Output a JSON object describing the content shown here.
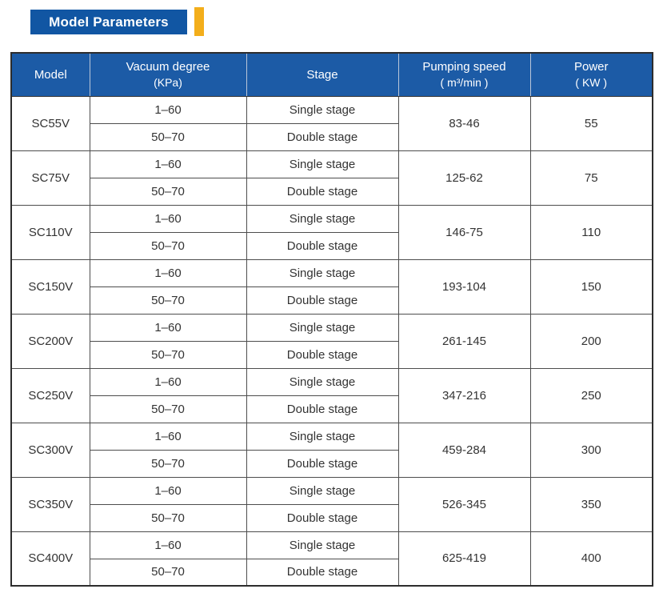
{
  "banner": {
    "label": "Model Parameters",
    "bg_color": "#1156a3",
    "accent_color": "#f3ae1b"
  },
  "table": {
    "header_bg": "#1c5ba6",
    "header_text_color": "#ffffff",
    "columns": [
      {
        "label": "Model",
        "sub": ""
      },
      {
        "label": "Vacuum degree",
        "sub": "(KPa)"
      },
      {
        "label": "Stage",
        "sub": ""
      },
      {
        "label": "Pumping speed",
        "sub": "( m³/min )"
      },
      {
        "label": "Power",
        "sub": "( KW )"
      }
    ],
    "rows": [
      {
        "model": "SC55V",
        "sub_rows": [
          {
            "vacuum": "1–60",
            "stage": "Single stage"
          },
          {
            "vacuum": "50–70",
            "stage": "Double stage"
          }
        ],
        "pumping_speed": "83-46",
        "power": "55"
      },
      {
        "model": "SC75V",
        "sub_rows": [
          {
            "vacuum": "1–60",
            "stage": "Single stage"
          },
          {
            "vacuum": "50–70",
            "stage": "Double stage"
          }
        ],
        "pumping_speed": "125-62",
        "power": "75"
      },
      {
        "model": "SC110V",
        "sub_rows": [
          {
            "vacuum": "1–60",
            "stage": "Single stage"
          },
          {
            "vacuum": "50–70",
            "stage": "Double stage"
          }
        ],
        "pumping_speed": "146-75",
        "power": "110"
      },
      {
        "model": "SC150V",
        "sub_rows": [
          {
            "vacuum": "1–60",
            "stage": "Single stage"
          },
          {
            "vacuum": "50–70",
            "stage": "Double stage"
          }
        ],
        "pumping_speed": "193-104",
        "power": "150"
      },
      {
        "model": "SC200V",
        "sub_rows": [
          {
            "vacuum": "1–60",
            "stage": "Single stage"
          },
          {
            "vacuum": "50–70",
            "stage": "Double stage"
          }
        ],
        "pumping_speed": "261-145",
        "power": "200"
      },
      {
        "model": "SC250V",
        "sub_rows": [
          {
            "vacuum": "1–60",
            "stage": "Single stage"
          },
          {
            "vacuum": "50–70",
            "stage": "Double stage"
          }
        ],
        "pumping_speed": "347-216",
        "power": "250"
      },
      {
        "model": "SC300V",
        "sub_rows": [
          {
            "vacuum": "1–60",
            "stage": "Single stage"
          },
          {
            "vacuum": "50–70",
            "stage": "Double stage"
          }
        ],
        "pumping_speed": "459-284",
        "power": "300"
      },
      {
        "model": "SC350V",
        "sub_rows": [
          {
            "vacuum": "1–60",
            "stage": "Single stage"
          },
          {
            "vacuum": "50–70",
            "stage": "Double stage"
          }
        ],
        "pumping_speed": "526-345",
        "power": "350"
      },
      {
        "model": "SC400V",
        "sub_rows": [
          {
            "vacuum": "1–60",
            "stage": "Single stage"
          },
          {
            "vacuum": "50–70",
            "stage": "Double stage"
          }
        ],
        "pumping_speed": "625-419",
        "power": "400"
      }
    ]
  }
}
